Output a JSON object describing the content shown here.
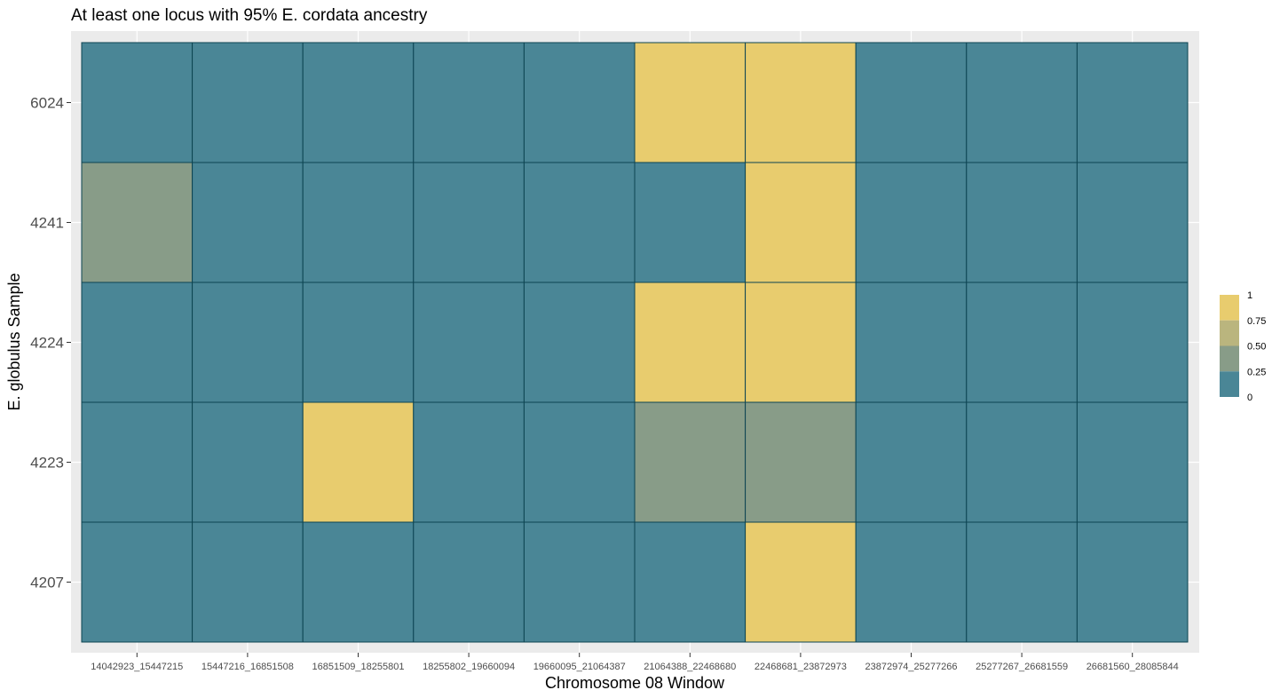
{
  "chart_data": {
    "type": "heatmap",
    "title": "At least one locus with 95% E. cordata ancestry",
    "xlabel": "Chromosome 08 Window",
    "ylabel": "E. globulus Sample",
    "x_categories": [
      "14042923_15447215",
      "15447216_16851508",
      "16851509_18255801",
      "18255802_19660094",
      "19660095_21064387",
      "21064388_22468680",
      "22468681_23872973",
      "23872974_25277266",
      "25277267_26681559",
      "26681560_28085844"
    ],
    "y_categories": [
      "6024",
      "4241",
      "4224",
      "4223",
      "4207"
    ],
    "values": [
      [
        0,
        0,
        0,
        0,
        0,
        1,
        1,
        0,
        0,
        0
      ],
      [
        0.5,
        0,
        0,
        0,
        0,
        0,
        1,
        0,
        0,
        0
      ],
      [
        0,
        0,
        0,
        0,
        0,
        1,
        1,
        0,
        0,
        0
      ],
      [
        0,
        0,
        1,
        0,
        0,
        0.5,
        0.5,
        0,
        0,
        0
      ],
      [
        0,
        0,
        0,
        0,
        0,
        0,
        1,
        0,
        0,
        0
      ]
    ],
    "color_scale": {
      "low": "#4a8696",
      "mid": "#889c88",
      "high": "#e8cc6e",
      "tile_border": "#0c4452",
      "panel_background": "#ebebeb",
      "grid": "#ffffff"
    },
    "legend": {
      "position": "right",
      "labels": [
        "1",
        "0.75",
        "0.50",
        "0.25",
        "0"
      ],
      "levels": [
        1,
        0.75,
        0.5,
        0.25,
        0
      ],
      "colors": [
        "#e8cc6e",
        "#bab57e",
        "#889c88",
        "#4a8696"
      ]
    }
  }
}
